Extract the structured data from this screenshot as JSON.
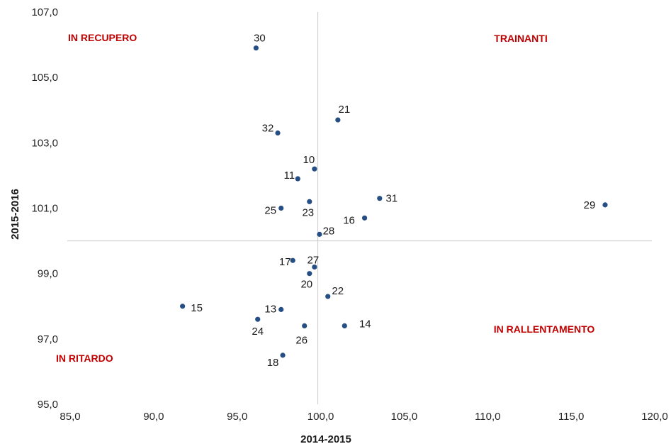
{
  "chart_data": {
    "type": "scatter",
    "xlabel": "2014-2015",
    "ylabel": "2015-2016",
    "xlim": [
      85,
      120
    ],
    "ylim": [
      95,
      107
    ],
    "x_ticks": [
      "85,0",
      "90,0",
      "95,0",
      "100,0",
      "105,0",
      "110,0",
      "115,0",
      "120,0"
    ],
    "y_ticks": [
      "95,0",
      "97,0",
      "99,0",
      "101,0",
      "103,0",
      "105,0",
      "107,0"
    ],
    "reference_lines": {
      "x": 100,
      "y": 100
    },
    "grid": false,
    "marker_color": "#254e84",
    "quadrant_color": "#c00000",
    "quadrants": [
      {
        "label": "IN RECUPERO",
        "position": "top-left"
      },
      {
        "label": "TRAINANTI",
        "position": "top-right"
      },
      {
        "label": "IN RALLENTAMENTO",
        "position": "bottom-right"
      },
      {
        "label": "IN RITARDO",
        "position": "bottom-left"
      }
    ],
    "points": [
      {
        "label": "30",
        "x": 96.3,
        "y": 105.9
      },
      {
        "label": "21",
        "x": 101.2,
        "y": 103.7
      },
      {
        "label": "32",
        "x": 97.6,
        "y": 103.3
      },
      {
        "label": "10",
        "x": 99.8,
        "y": 102.2
      },
      {
        "label": "11",
        "x": 98.8,
        "y": 101.9
      },
      {
        "label": "31",
        "x": 103.7,
        "y": 101.3
      },
      {
        "label": "29",
        "x": 117.2,
        "y": 101.1
      },
      {
        "label": "23",
        "x": 99.5,
        "y": 101.2
      },
      {
        "label": "25",
        "x": 97.8,
        "y": 101.0
      },
      {
        "label": "16",
        "x": 102.8,
        "y": 100.7
      },
      {
        "label": "28",
        "x": 100.1,
        "y": 100.2
      },
      {
        "label": "17",
        "x": 98.5,
        "y": 99.4
      },
      {
        "label": "27",
        "x": 99.8,
        "y": 99.2
      },
      {
        "label": "20",
        "x": 99.5,
        "y": 99.0
      },
      {
        "label": "22",
        "x": 100.6,
        "y": 98.3
      },
      {
        "label": "15",
        "x": 91.9,
        "y": 98.0
      },
      {
        "label": "13",
        "x": 97.8,
        "y": 97.9
      },
      {
        "label": "24",
        "x": 96.4,
        "y": 97.6
      },
      {
        "label": "14",
        "x": 101.6,
        "y": 97.4
      },
      {
        "label": "26",
        "x": 99.2,
        "y": 97.4
      },
      {
        "label": "18",
        "x": 97.9,
        "y": 96.5
      }
    ]
  }
}
